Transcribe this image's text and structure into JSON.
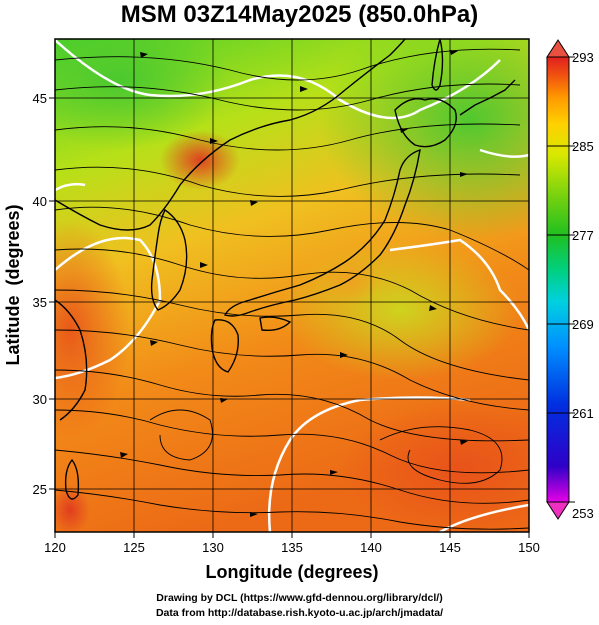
{
  "title": "MSM 03Z14May2025 (850.0hPa)",
  "x_axis": {
    "label": "Longitude (degrees)",
    "ticks": [
      "120",
      "125",
      "130",
      "135",
      "140",
      "145",
      "150"
    ],
    "range": [
      120,
      150
    ]
  },
  "y_axis": {
    "label": "Latitude  (degrees)",
    "ticks": [
      "25",
      "30",
      "35",
      "40",
      "45"
    ],
    "range": [
      22.4,
      47.6
    ]
  },
  "colorbar": {
    "ticks": [
      "293",
      "285",
      "277",
      "269",
      "261",
      "253"
    ],
    "range": [
      253,
      293
    ],
    "palette": [
      "#e600e6",
      "#2f00c8",
      "#0030e0",
      "#0090ff",
      "#00d0e0",
      "#00d080",
      "#20c020",
      "#70d010",
      "#d8e800",
      "#ffd000",
      "#ff9800",
      "#f05010",
      "#e02020"
    ]
  },
  "credits": {
    "line1": "Drawing by DCL (https://www.gfd-dennou.org/library/dcl/)",
    "line2": "Data from http://database.rish.kyoto-u.ac.jp/arch/jmadata/"
  },
  "colors": {
    "contour": "#ffffff",
    "coast": "#000000",
    "streamline": "#000000"
  }
}
